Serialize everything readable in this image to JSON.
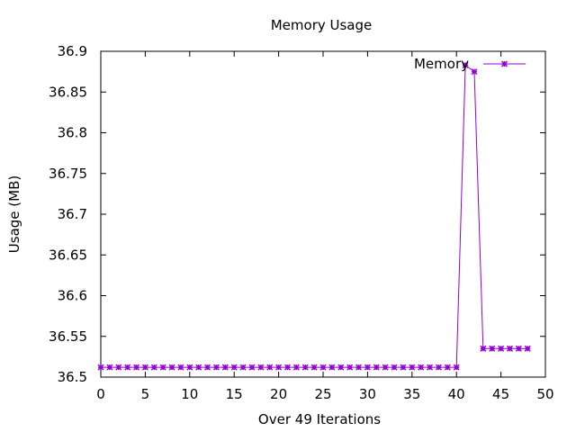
{
  "chart_data": {
    "type": "line",
    "title": "Memory Usage",
    "xlabel": "Over 49 Iterations",
    "ylabel": "Usage (MB)",
    "xlim": [
      0,
      50
    ],
    "ylim": [
      36.5,
      36.9
    ],
    "xticks": [
      0,
      5,
      10,
      15,
      20,
      25,
      30,
      35,
      40,
      45,
      50
    ],
    "yticks": [
      36.5,
      36.55,
      36.6,
      36.65,
      36.7,
      36.75,
      36.8,
      36.85,
      36.9
    ],
    "xtick_labels": [
      "0",
      "5",
      "10",
      "15",
      "20",
      "25",
      "30",
      "35",
      "40",
      "45",
      "50"
    ],
    "ytick_labels": [
      "36.5",
      "36.55",
      "36.6",
      "36.65",
      "36.7",
      "36.75",
      "36.8",
      "36.85",
      "36.9"
    ],
    "grid": false,
    "legend_position": "top-right",
    "series": [
      {
        "name": "Memory",
        "color": "#9400d3",
        "marker": "cross",
        "x": [
          0,
          1,
          2,
          3,
          4,
          5,
          6,
          7,
          8,
          9,
          10,
          11,
          12,
          13,
          14,
          15,
          16,
          17,
          18,
          19,
          20,
          21,
          22,
          23,
          24,
          25,
          26,
          27,
          28,
          29,
          30,
          31,
          32,
          33,
          34,
          35,
          36,
          37,
          38,
          39,
          40,
          41,
          42,
          43,
          44,
          45,
          46,
          47,
          48
        ],
        "y": [
          36.512,
          36.512,
          36.512,
          36.512,
          36.512,
          36.512,
          36.512,
          36.512,
          36.512,
          36.512,
          36.512,
          36.512,
          36.512,
          36.512,
          36.512,
          36.512,
          36.512,
          36.512,
          36.512,
          36.512,
          36.512,
          36.512,
          36.512,
          36.512,
          36.512,
          36.512,
          36.512,
          36.512,
          36.512,
          36.512,
          36.512,
          36.512,
          36.512,
          36.512,
          36.512,
          36.512,
          36.512,
          36.512,
          36.512,
          36.512,
          36.512,
          36.883,
          36.875,
          36.535,
          36.535,
          36.535,
          36.535,
          36.535,
          36.535
        ]
      }
    ]
  }
}
